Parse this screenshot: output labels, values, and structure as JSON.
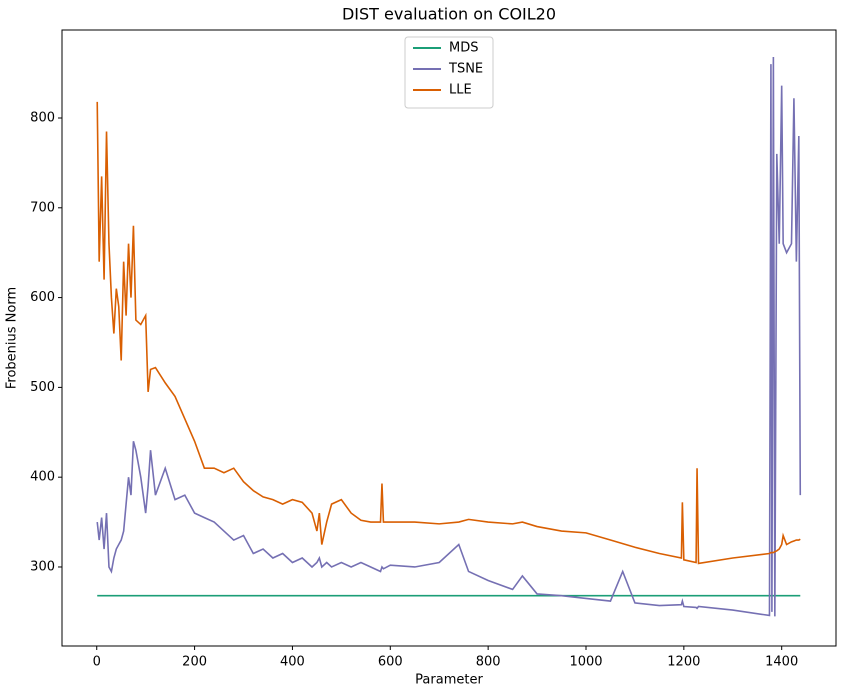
{
  "chart_data": {
    "type": "line",
    "title": "DIST evaluation on COIL20",
    "x_label": "Parameter",
    "y_label": "Frobenius Norm",
    "x": [
      1,
      5,
      10,
      15,
      20,
      25,
      30,
      35,
      40,
      45,
      50,
      55,
      60,
      65,
      70,
      75,
      80,
      90,
      100,
      105,
      110,
      120,
      140,
      160,
      180,
      200,
      220,
      240,
      260,
      280,
      300,
      320,
      340,
      360,
      380,
      400,
      420,
      440,
      450,
      455,
      460,
      470,
      480,
      500,
      520,
      540,
      560,
      580,
      583,
      586,
      600,
      650,
      700,
      740,
      760,
      800,
      850,
      870,
      900,
      950,
      1000,
      1050,
      1075,
      1100,
      1150,
      1195,
      1197,
      1200,
      1225,
      1227,
      1230,
      1300,
      1375,
      1378,
      1380,
      1383,
      1386,
      1390,
      1395,
      1400,
      1403,
      1410,
      1420,
      1425,
      1430,
      1435,
      1438
    ],
    "series": [
      {
        "name": "MDS",
        "color": "#1b9e77",
        "values": [
          268,
          268,
          268,
          268,
          268,
          268,
          268,
          268,
          268,
          268,
          268,
          268,
          268,
          268,
          268,
          268,
          268,
          268,
          268,
          268,
          268,
          268,
          268,
          268,
          268,
          268,
          268,
          268,
          268,
          268,
          268,
          268,
          268,
          268,
          268,
          268,
          268,
          268,
          268,
          268,
          268,
          268,
          268,
          268,
          268,
          268,
          268,
          268,
          268,
          268,
          268,
          268,
          268,
          268,
          268,
          268,
          268,
          268,
          268,
          268,
          268,
          268,
          268,
          268,
          268,
          268,
          268,
          268,
          268,
          268,
          268,
          268,
          268,
          268,
          268,
          268,
          268,
          268,
          268,
          268,
          268,
          268,
          268,
          268,
          268,
          268,
          268
        ]
      },
      {
        "name": "TSNE",
        "color": "#7570b3",
        "values": [
          350,
          330,
          355,
          320,
          360,
          300,
          295,
          310,
          320,
          325,
          330,
          340,
          370,
          400,
          380,
          440,
          430,
          400,
          360,
          390,
          430,
          380,
          410,
          375,
          380,
          360,
          355,
          350,
          340,
          330,
          335,
          315,
          320,
          310,
          315,
          305,
          310,
          300,
          305,
          310,
          300,
          305,
          300,
          305,
          300,
          305,
          300,
          295,
          300,
          298,
          302,
          300,
          305,
          325,
          295,
          285,
          275,
          290,
          270,
          268,
          265,
          262,
          295,
          260,
          257,
          258,
          262,
          256,
          255,
          254,
          256,
          252,
          246,
          860,
          250,
          868,
          245,
          760,
          660,
          836,
          660,
          650,
          660,
          822,
          640,
          780,
          380
        ]
      },
      {
        "name": "LLE",
        "color": "#d95f02",
        "values": [
          818,
          640,
          735,
          620,
          785,
          660,
          600,
          560,
          610,
          590,
          530,
          640,
          580,
          660,
          600,
          680,
          575,
          570,
          580,
          495,
          520,
          522,
          505,
          490,
          465,
          440,
          410,
          410,
          405,
          410,
          395,
          385,
          378,
          375,
          370,
          375,
          372,
          360,
          340,
          360,
          325,
          350,
          370,
          375,
          360,
          352,
          350,
          350,
          393,
          350,
          350,
          350,
          348,
          350,
          353,
          350,
          348,
          350,
          345,
          340,
          338,
          330,
          326,
          322,
          315,
          310,
          372,
          308,
          305,
          410,
          304,
          310,
          315,
          316,
          316,
          316,
          317,
          318,
          320,
          325,
          335,
          325,
          328,
          329,
          330,
          330,
          331
        ]
      }
    ],
    "xlim": [
      -71,
      1511
    ],
    "ylim": [
      212,
      898
    ],
    "xticks": [
      0,
      200,
      400,
      600,
      800,
      1000,
      1200,
      1400
    ],
    "yticks": [
      300,
      400,
      500,
      600,
      700,
      800
    ],
    "legend": "upper center"
  }
}
